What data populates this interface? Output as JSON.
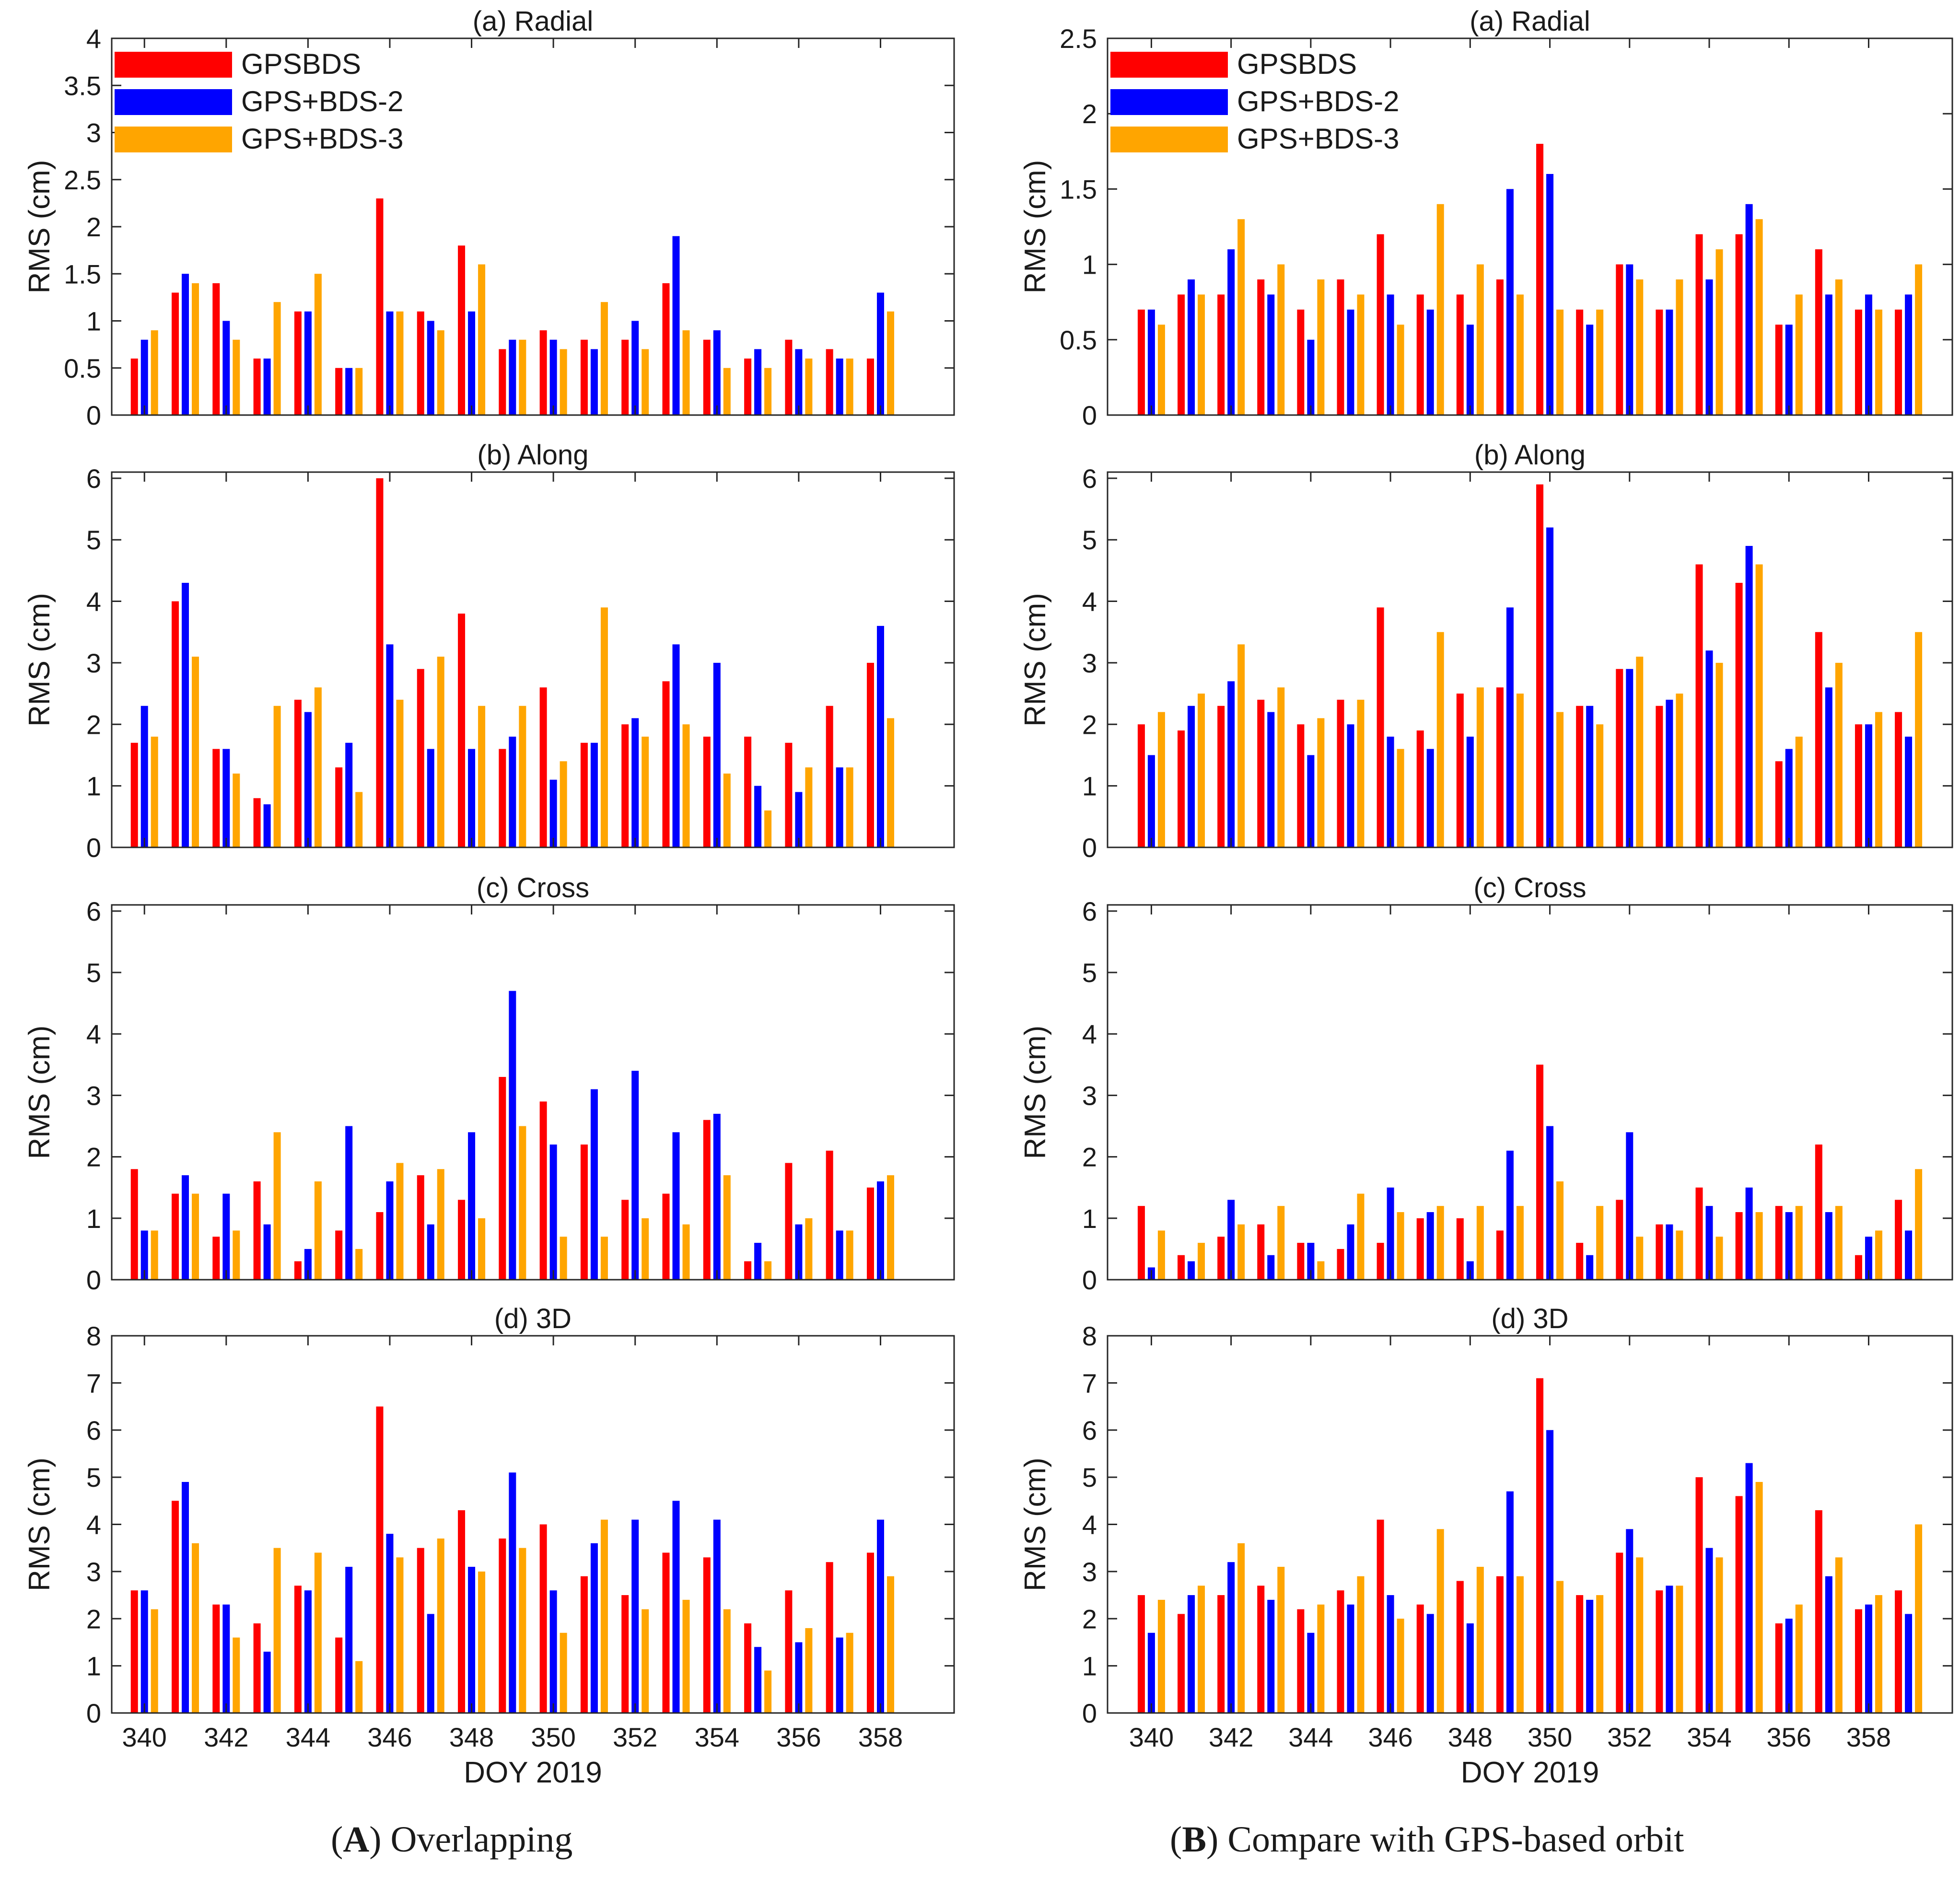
{
  "captions": {
    "left": {
      "letter": "A",
      "text": "Overlapping"
    },
    "right": {
      "letter": "B",
      "text": "Compare with GPS-based orbit"
    }
  },
  "colors": {
    "GPSBDS": "#ff0000",
    "GPS+BDS-2": "#0000ff",
    "GPS+BDS-3": "#ffa500"
  },
  "chart_data": [
    {
      "type": "bar",
      "column": "A",
      "title": "(a) Radial",
      "ylabel": "RMS (cm)",
      "xlabel": "",
      "ylim": [
        0,
        4
      ],
      "yticks": [
        "0",
        "0.5",
        "1",
        "1.5",
        "2",
        "2.5",
        "3",
        "3.5",
        "4"
      ],
      "yticks_values": [
        0,
        0.5,
        1,
        1.5,
        2,
        2.5,
        3,
        3.5,
        4
      ],
      "xlim": [
        339.2,
        359.8
      ],
      "xticks": [
        340,
        342,
        344,
        346,
        348,
        350,
        352,
        354,
        356,
        358
      ],
      "show_xticklabels": false,
      "legend": true,
      "legend_position": "top-left",
      "x": [
        340,
        341,
        342,
        343,
        344,
        345,
        346,
        347,
        348,
        349,
        350,
        351,
        352,
        353,
        354,
        355,
        356,
        357,
        358
      ],
      "series": [
        {
          "name": "GPSBDS",
          "values": [
            0.6,
            1.3,
            1.4,
            0.6,
            1.1,
            0.5,
            2.3,
            1.1,
            1.8,
            0.7,
            0.9,
            0.8,
            0.8,
            1.4,
            0.8,
            0.6,
            0.8,
            0.7,
            0.6
          ]
        },
        {
          "name": "GPS+BDS-2",
          "values": [
            0.8,
            1.5,
            1.0,
            0.6,
            1.1,
            0.5,
            1.1,
            1.0,
            1.1,
            0.8,
            0.8,
            0.7,
            1.0,
            1.9,
            0.9,
            0.7,
            0.7,
            0.6,
            1.3
          ]
        },
        {
          "name": "GPS+BDS-3",
          "values": [
            0.9,
            1.4,
            0.8,
            1.2,
            1.5,
            0.5,
            1.1,
            0.9,
            1.6,
            0.8,
            0.7,
            1.2,
            0.7,
            0.9,
            0.5,
            0.5,
            0.6,
            0.6,
            1.1
          ]
        }
      ]
    },
    {
      "type": "bar",
      "column": "A",
      "title": "(b) Along",
      "ylabel": "RMS (cm)",
      "xlabel": "",
      "ylim": [
        0,
        6.1
      ],
      "yticks": [
        "0",
        "1",
        "2",
        "3",
        "4",
        "5",
        "6"
      ],
      "yticks_values": [
        0,
        1,
        2,
        3,
        4,
        5,
        6
      ],
      "xlim": [
        339.2,
        359.8
      ],
      "xticks": [
        340,
        342,
        344,
        346,
        348,
        350,
        352,
        354,
        356,
        358
      ],
      "show_xticklabels": false,
      "legend": false,
      "x": [
        340,
        341,
        342,
        343,
        344,
        345,
        346,
        347,
        348,
        349,
        350,
        351,
        352,
        353,
        354,
        355,
        356,
        357,
        358
      ],
      "series": [
        {
          "name": "GPSBDS",
          "values": [
            1.7,
            4.0,
            1.6,
            0.8,
            2.4,
            1.3,
            6.0,
            2.9,
            3.8,
            1.6,
            2.6,
            1.7,
            2.0,
            2.7,
            1.8,
            1.8,
            1.7,
            2.3,
            3.0
          ]
        },
        {
          "name": "GPS+BDS-2",
          "values": [
            2.3,
            4.3,
            1.6,
            0.7,
            2.2,
            1.7,
            3.3,
            1.6,
            1.6,
            1.8,
            1.1,
            1.7,
            2.1,
            3.3,
            3.0,
            1.0,
            0.9,
            1.3,
            3.6
          ]
        },
        {
          "name": "GPS+BDS-3",
          "values": [
            1.8,
            3.1,
            1.2,
            2.3,
            2.6,
            0.9,
            2.4,
            3.1,
            2.3,
            2.3,
            1.4,
            3.9,
            1.8,
            2.0,
            1.2,
            0.6,
            1.3,
            1.3,
            2.1
          ]
        }
      ]
    },
    {
      "type": "bar",
      "column": "A",
      "title": "(c) Cross",
      "ylabel": "RMS (cm)",
      "xlabel": "",
      "ylim": [
        0,
        6.1
      ],
      "yticks": [
        "0",
        "1",
        "2",
        "3",
        "4",
        "5",
        "6"
      ],
      "yticks_values": [
        0,
        1,
        2,
        3,
        4,
        5,
        6
      ],
      "xlim": [
        339.2,
        359.8
      ],
      "xticks": [
        340,
        342,
        344,
        346,
        348,
        350,
        352,
        354,
        356,
        358
      ],
      "show_xticklabels": false,
      "legend": false,
      "x": [
        340,
        341,
        342,
        343,
        344,
        345,
        346,
        347,
        348,
        349,
        350,
        351,
        352,
        353,
        354,
        355,
        356,
        357,
        358
      ],
      "series": [
        {
          "name": "GPSBDS",
          "values": [
            1.8,
            1.4,
            0.7,
            1.6,
            0.3,
            0.8,
            1.1,
            1.7,
            1.3,
            3.3,
            2.9,
            2.2,
            1.3,
            1.4,
            2.6,
            0.3,
            1.9,
            2.1,
            1.5
          ]
        },
        {
          "name": "GPS+BDS-2",
          "values": [
            0.8,
            1.7,
            1.4,
            0.9,
            0.5,
            2.5,
            1.6,
            0.9,
            2.4,
            4.7,
            2.2,
            3.1,
            3.4,
            2.4,
            2.7,
            0.6,
            0.9,
            0.8,
            1.6
          ]
        },
        {
          "name": "GPS+BDS-3",
          "values": [
            0.8,
            1.4,
            0.8,
            2.4,
            1.6,
            0.5,
            1.9,
            1.8,
            1.0,
            2.5,
            0.7,
            0.7,
            1.0,
            0.9,
            1.7,
            0.3,
            1.0,
            0.8,
            1.7
          ]
        }
      ]
    },
    {
      "type": "bar",
      "column": "A",
      "title": "(d) 3D",
      "ylabel": "RMS (cm)",
      "xlabel": "DOY 2019",
      "ylim": [
        0,
        8
      ],
      "yticks": [
        "0",
        "1",
        "2",
        "3",
        "4",
        "5",
        "6",
        "7",
        "8"
      ],
      "yticks_values": [
        0,
        1,
        2,
        3,
        4,
        5,
        6,
        7,
        8
      ],
      "xlim": [
        339.2,
        359.8
      ],
      "xticks": [
        340,
        342,
        344,
        346,
        348,
        350,
        352,
        354,
        356,
        358
      ],
      "xtick_labels": [
        "340",
        "342",
        "344",
        "346",
        "348",
        "350",
        "352",
        "354",
        "356",
        "358"
      ],
      "show_xticklabels": true,
      "legend": false,
      "x": [
        340,
        341,
        342,
        343,
        344,
        345,
        346,
        347,
        348,
        349,
        350,
        351,
        352,
        353,
        354,
        355,
        356,
        357,
        358
      ],
      "series": [
        {
          "name": "GPSBDS",
          "values": [
            2.6,
            4.5,
            2.3,
            1.9,
            2.7,
            1.6,
            6.5,
            3.5,
            4.3,
            3.7,
            4.0,
            2.9,
            2.5,
            3.4,
            3.3,
            1.9,
            2.6,
            3.2,
            3.4
          ]
        },
        {
          "name": "GPS+BDS-2",
          "values": [
            2.6,
            4.9,
            2.3,
            1.3,
            2.6,
            3.1,
            3.8,
            2.1,
            3.1,
            5.1,
            2.6,
            3.6,
            4.1,
            4.5,
            4.1,
            1.4,
            1.5,
            1.6,
            4.1
          ]
        },
        {
          "name": "GPS+BDS-3",
          "values": [
            2.2,
            3.6,
            1.6,
            3.5,
            3.4,
            1.1,
            3.3,
            3.7,
            3.0,
            3.5,
            1.7,
            4.1,
            2.2,
            2.4,
            2.2,
            0.9,
            1.8,
            1.7,
            2.9
          ]
        }
      ]
    },
    {
      "type": "bar",
      "column": "B",
      "title": "(a) Radial",
      "ylabel": "RMS (cm)",
      "xlabel": "",
      "ylim": [
        0,
        2.5
      ],
      "yticks": [
        "0",
        "0.5",
        "1",
        "1.5",
        "2",
        "2.5"
      ],
      "yticks_values": [
        0,
        0.5,
        1,
        1.5,
        2,
        2.5
      ],
      "xlim": [
        338.9,
        360.1
      ],
      "xticks": [
        340,
        342,
        344,
        346,
        348,
        350,
        352,
        354,
        356,
        358
      ],
      "show_xticklabels": false,
      "legend": true,
      "legend_position": "top-left",
      "x": [
        340,
        341,
        342,
        343,
        344,
        345,
        346,
        347,
        348,
        349,
        350,
        351,
        352,
        353,
        354,
        355,
        356,
        357,
        358,
        359
      ],
      "series": [
        {
          "name": "GPSBDS",
          "values": [
            0.7,
            0.8,
            0.8,
            0.9,
            0.7,
            0.9,
            1.2,
            0.8,
            0.8,
            0.9,
            1.8,
            0.7,
            1.0,
            0.7,
            1.2,
            1.2,
            0.6,
            1.1,
            0.7,
            0.7
          ]
        },
        {
          "name": "GPS+BDS-2",
          "values": [
            0.7,
            0.9,
            1.1,
            0.8,
            0.5,
            0.7,
            0.8,
            0.7,
            0.6,
            1.5,
            1.6,
            0.6,
            1.0,
            0.7,
            0.9,
            1.4,
            0.6,
            0.8,
            0.8,
            0.8
          ]
        },
        {
          "name": "GPS+BDS-3",
          "values": [
            0.6,
            0.8,
            1.3,
            1.0,
            0.9,
            0.8,
            0.6,
            1.4,
            1.0,
            0.8,
            0.7,
            0.7,
            0.9,
            0.9,
            1.1,
            1.3,
            0.8,
            0.9,
            0.7,
            1.0
          ]
        }
      ]
    },
    {
      "type": "bar",
      "column": "B",
      "title": "(b) Along",
      "ylabel": "RMS (cm)",
      "xlabel": "",
      "ylim": [
        0,
        6.1
      ],
      "yticks": [
        "0",
        "1",
        "2",
        "3",
        "4",
        "5",
        "6"
      ],
      "yticks_values": [
        0,
        1,
        2,
        3,
        4,
        5,
        6
      ],
      "xlim": [
        338.9,
        360.1
      ],
      "xticks": [
        340,
        342,
        344,
        346,
        348,
        350,
        352,
        354,
        356,
        358
      ],
      "show_xticklabels": false,
      "legend": false,
      "x": [
        340,
        341,
        342,
        343,
        344,
        345,
        346,
        347,
        348,
        349,
        350,
        351,
        352,
        353,
        354,
        355,
        356,
        357,
        358,
        359
      ],
      "series": [
        {
          "name": "GPSBDS",
          "values": [
            2.0,
            1.9,
            2.3,
            2.4,
            2.0,
            2.4,
            3.9,
            1.9,
            2.5,
            2.6,
            5.9,
            2.3,
            2.9,
            2.3,
            4.6,
            4.3,
            1.4,
            3.5,
            2.0,
            2.2
          ]
        },
        {
          "name": "GPS+BDS-2",
          "values": [
            1.5,
            2.3,
            2.7,
            2.2,
            1.5,
            2.0,
            1.8,
            1.6,
            1.8,
            3.9,
            5.2,
            2.3,
            2.9,
            2.4,
            3.2,
            4.9,
            1.6,
            2.6,
            2.0,
            1.8
          ]
        },
        {
          "name": "GPS+BDS-3",
          "values": [
            2.2,
            2.5,
            3.3,
            2.6,
            2.1,
            2.4,
            1.6,
            3.5,
            2.6,
            2.5,
            2.2,
            2.0,
            3.1,
            2.5,
            3.0,
            4.6,
            1.8,
            3.0,
            2.2,
            3.5
          ]
        }
      ]
    },
    {
      "type": "bar",
      "column": "B",
      "title": "(c) Cross",
      "ylabel": "RMS (cm)",
      "xlabel": "",
      "ylim": [
        0,
        6.1
      ],
      "yticks": [
        "0",
        "1",
        "2",
        "3",
        "4",
        "5",
        "6"
      ],
      "yticks_values": [
        0,
        1,
        2,
        3,
        4,
        5,
        6
      ],
      "xlim": [
        338.9,
        360.1
      ],
      "xticks": [
        340,
        342,
        344,
        346,
        348,
        350,
        352,
        354,
        356,
        358
      ],
      "show_xticklabels": false,
      "legend": false,
      "x": [
        340,
        341,
        342,
        343,
        344,
        345,
        346,
        347,
        348,
        349,
        350,
        351,
        352,
        353,
        354,
        355,
        356,
        357,
        358,
        359
      ],
      "series": [
        {
          "name": "GPSBDS",
          "values": [
            1.2,
            0.4,
            0.7,
            0.9,
            0.6,
            0.5,
            0.6,
            1.0,
            1.0,
            0.8,
            3.5,
            0.6,
            1.3,
            0.9,
            1.5,
            1.1,
            1.2,
            2.2,
            0.4,
            1.3
          ]
        },
        {
          "name": "GPS+BDS-2",
          "values": [
            0.2,
            0.3,
            1.3,
            0.4,
            0.6,
            0.9,
            1.5,
            1.1,
            0.3,
            2.1,
            2.5,
            0.4,
            2.4,
            0.9,
            1.2,
            1.5,
            1.1,
            1.1,
            0.7,
            0.8
          ]
        },
        {
          "name": "GPS+BDS-3",
          "values": [
            0.8,
            0.6,
            0.9,
            1.2,
            0.3,
            1.4,
            1.1,
            1.2,
            1.2,
            1.2,
            1.6,
            1.2,
            0.7,
            0.8,
            0.7,
            1.1,
            1.2,
            1.2,
            0.8,
            1.8
          ]
        }
      ]
    },
    {
      "type": "bar",
      "column": "B",
      "title": "(d) 3D",
      "ylabel": "RMS (cm)",
      "xlabel": "DOY 2019",
      "ylim": [
        0,
        8
      ],
      "yticks": [
        "0",
        "1",
        "2",
        "3",
        "4",
        "5",
        "6",
        "7",
        "8"
      ],
      "yticks_values": [
        0,
        1,
        2,
        3,
        4,
        5,
        6,
        7,
        8
      ],
      "xlim": [
        338.9,
        360.1
      ],
      "xticks": [
        340,
        342,
        344,
        346,
        348,
        350,
        352,
        354,
        356,
        358
      ],
      "xtick_labels": [
        "340",
        "342",
        "344",
        "346",
        "348",
        "350",
        "352",
        "354",
        "356",
        "358"
      ],
      "show_xticklabels": true,
      "legend": false,
      "x": [
        340,
        341,
        342,
        343,
        344,
        345,
        346,
        347,
        348,
        349,
        350,
        351,
        352,
        353,
        354,
        355,
        356,
        357,
        358,
        359
      ],
      "series": [
        {
          "name": "GPSBDS",
          "values": [
            2.5,
            2.1,
            2.5,
            2.7,
            2.2,
            2.6,
            4.1,
            2.3,
            2.8,
            2.9,
            7.1,
            2.5,
            3.4,
            2.6,
            5.0,
            4.6,
            1.9,
            4.3,
            2.2,
            2.6
          ]
        },
        {
          "name": "GPS+BDS-2",
          "values": [
            1.7,
            2.5,
            3.2,
            2.4,
            1.7,
            2.3,
            2.5,
            2.1,
            1.9,
            4.7,
            6.0,
            2.4,
            3.9,
            2.7,
            3.5,
            5.3,
            2.0,
            2.9,
            2.3,
            2.1
          ]
        },
        {
          "name": "GPS+BDS-3",
          "values": [
            2.4,
            2.7,
            3.6,
            3.1,
            2.3,
            2.9,
            2.0,
            3.9,
            3.1,
            2.9,
            2.8,
            2.5,
            3.3,
            2.7,
            3.3,
            4.9,
            2.3,
            3.3,
            2.5,
            4.0
          ]
        }
      ]
    }
  ]
}
